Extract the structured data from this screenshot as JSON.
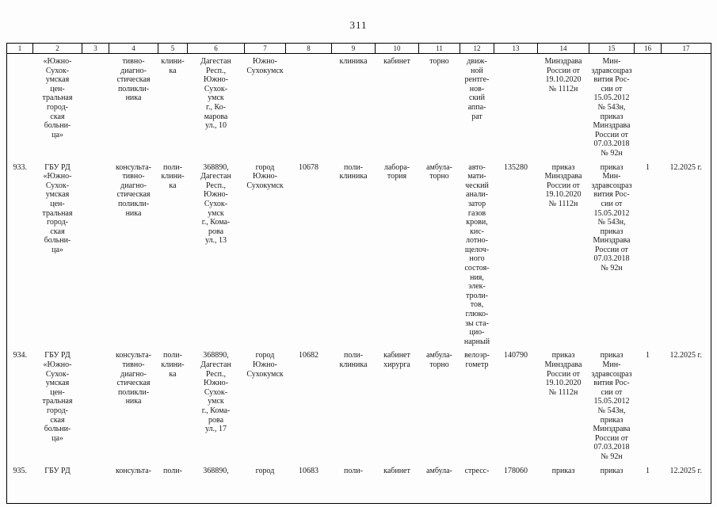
{
  "page": {
    "number": "311"
  },
  "table": {
    "header": [
      "1",
      "2",
      "3",
      "4",
      "5",
      "6",
      "7",
      "8",
      "9",
      "10",
      "11",
      "12",
      "13",
      "14",
      "15",
      "16",
      "17"
    ],
    "rows": [
      {
        "cells": [
          "",
          "«Южно-\nСухок-\nумская\nцен-\nтральная\nгород-\nская\nбольни-\nца»",
          "",
          "тивно-\nдиагно-\nстическая\nполикли-\nника",
          "клини-\nка",
          "Дагестан\nРесп.,\nЮжно-\nСухок-\nумск\nг., Ко-\nмарова\nул., 10",
          "Южно-\nСухокумск",
          "",
          "клиника",
          "кабинет",
          "торно",
          "движ-\nной\nрентге-\nнов-\nский\nаппа-\nрат",
          "",
          "Минздрава\nРоссии от\n19.10.2020\n№ 1112н",
          "Мин-\nздравсоцраз\nвития Рос-\nсии от\n15.05.2012\n№ 543н,\nприказ\nМинздрава\nРоссии от\n07.03.2018\n№ 92н",
          "",
          ""
        ]
      },
      {
        "cells": [
          "933.",
          "ГБУ РД\n«Южно-\nСухок-\nумская\nцен-\nтральная\nгород-\nская\nбольни-\nца»",
          "",
          "консульта-\nтивно-\nдиагно-\nстическая\nполикли-\nника",
          "поли-\nклини-\nка",
          "368890,\nДагестан\nРесп.,\nЮжно-\nСухок-\nумск\nг., Кома-\nрова\nул., 13",
          "город\nЮжно-\nСухокумск",
          "10678",
          "поли-\nклиника",
          "лабора-\nтория",
          "амбула-\nторно",
          "авто-\nмати-\nческий\nанали-\nзатор\nгазов\nкрови,\nкис-\nлотно-\nщелоч-\nного\nсостоя-\nния,\nэлек-\nтроли-\nтов,\nглюко-\nзы ста-\nцио-\nнарный",
          "135280",
          "приказ\nМинздрава\nРоссии от\n19.10.2020\n№ 1112н",
          "приказ\nМин-\nздравсоцраз\nвития Рос-\nсии от\n15.05.2012\n№ 543н,\nприказ\nМинздрава\nРоссии от\n07.03.2018\n№ 92н",
          "1",
          "12.2025 г."
        ]
      },
      {
        "cells": [
          "934.",
          "ГБУ РД\n«Южно-\nСухок-\nумская\nцен-\nтральная\nгород-\nская\nбольни-\nца»",
          "",
          "консульта-\nтивно-\nдиагно-\nстическая\nполикли-\nника",
          "поли-\nклини-\nка",
          "368890,\nДагестан\nРесп.,\nЮжно-\nСухок-\nумск\nг., Кома-\nрова\nул., 17",
          "город\nЮжно-\nСухокумск",
          "10682",
          "поли-\nклиника",
          "кабинет\nхирурга",
          "амбула-\nторно",
          "велоэр-\nгометр",
          "140790",
          "приказ\nМинздрава\nРоссии от\n19.10.2020\n№ 1112н",
          "приказ\nМин-\nздравсоцраз\nвития Рос-\nсии от\n15.05.2012\n№ 543н,\nприказ\nМинздрава\nРоссии от\n07.03.2018\n№ 92н",
          "1",
          "12.2025 г."
        ]
      },
      {
        "cells": [
          "935.",
          "ГБУ РД",
          "",
          "консульта-",
          "поли-",
          "368890,",
          "город",
          "10683",
          "поли-",
          "кабинет",
          "амбула-",
          "стресс-",
          "178060",
          "приказ",
          "приказ",
          "1",
          "12.2025 г."
        ]
      }
    ]
  }
}
